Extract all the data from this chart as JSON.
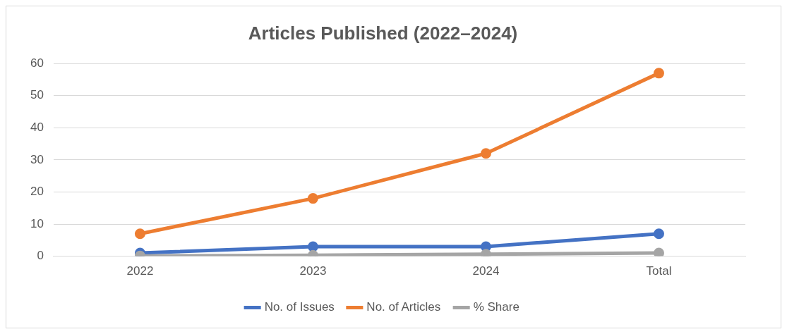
{
  "chart_data": {
    "type": "line",
    "title": "Articles Published (2022–2024)",
    "categories": [
      "2022",
      "2023",
      "2024",
      "Total"
    ],
    "series": [
      {
        "name": "No. of Issues",
        "color": "#4472c4",
        "values": [
          1,
          3,
          3,
          7
        ]
      },
      {
        "name": "No. of Articles",
        "color": "#ed7d31",
        "values": [
          7,
          18,
          32,
          57
        ]
      },
      {
        "name": "% Share",
        "color": "#a5a5a5",
        "values": [
          0.1,
          0.3,
          0.6,
          1
        ]
      }
    ],
    "ylim": [
      0,
      60
    ],
    "yticks": [
      0,
      10,
      20,
      30,
      40,
      50,
      60
    ],
    "grid": "y",
    "legend": "bottom",
    "marker": "circle",
    "line_style": "solid"
  }
}
